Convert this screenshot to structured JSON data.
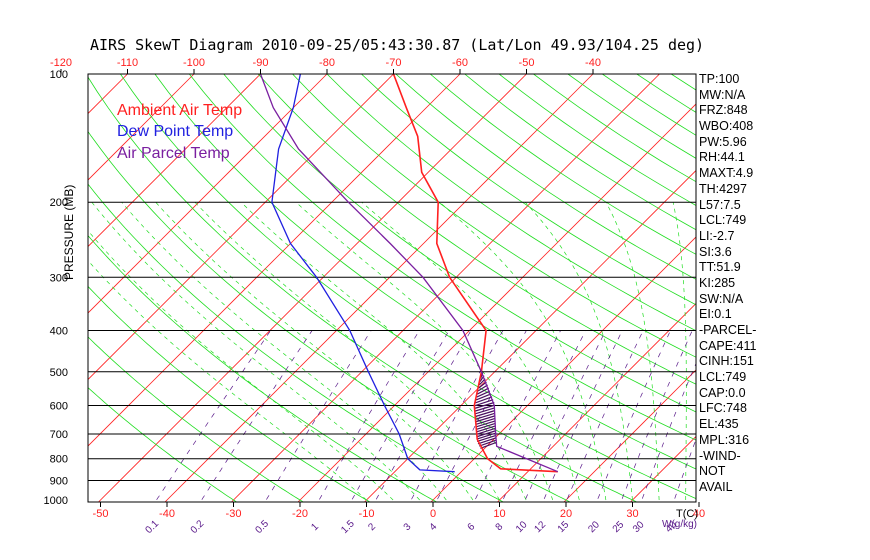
{
  "chart_data": {
    "type": "line",
    "title": "AIRS SkewT Diagram 2010-09-25/05:43:30.87 (Lat/Lon 49.93/104.25 deg)",
    "ylabel": "PRESSURE (MB)",
    "xlabel": "T(C)",
    "mixing_ratio_label": "W(g/kg)",
    "pressure_ticks": [
      "100",
      "200",
      "300",
      "400",
      "500",
      "600",
      "700",
      "800",
      "900",
      "1000"
    ],
    "pressure_levels": [
      200,
      300,
      400,
      500,
      600,
      700,
      800,
      900
    ],
    "top_temp_ticks": [
      "-120",
      "-110",
      "-100",
      "-90",
      "-80",
      "-70",
      "-60",
      "-50",
      "-40"
    ],
    "bottom_temp_ticks": [
      "-50",
      "-40",
      "-30",
      "-20",
      "-10",
      "0",
      "10",
      "20",
      "30",
      "40"
    ],
    "mixing_ratio_ticks": [
      "0.1",
      "0.2",
      "0.5",
      "1",
      "1.5",
      "2",
      "3",
      "4",
      "6",
      "8",
      "10",
      "12",
      "15",
      "20",
      "25",
      "30",
      "40"
    ],
    "ylim": [
      1000,
      100
    ],
    "series": [
      {
        "name": "Ambient Air Temp",
        "color": "#ff2020",
        "points": [
          [
            858,
            14.5
          ],
          [
            845,
            5.5
          ],
          [
            800,
            2.0
          ],
          [
            720,
            -2.5
          ],
          [
            600,
            -8.0
          ],
          [
            500,
            -12.0
          ],
          [
            400,
            -17.5
          ],
          [
            300,
            -31.0
          ],
          [
            250,
            -38.0
          ],
          [
            200,
            -44.0
          ],
          [
            170,
            -51.0
          ],
          [
            140,
            -57.0
          ],
          [
            120,
            -63.0
          ],
          [
            100,
            -70.0
          ]
        ]
      },
      {
        "name": "Dew Point Temp",
        "color": "#2020e0",
        "points": [
          [
            858,
            -1.0
          ],
          [
            850,
            -6.5
          ],
          [
            800,
            -10.0
          ],
          [
            700,
            -15.0
          ],
          [
            600,
            -21.5
          ],
          [
            500,
            -29.0
          ],
          [
            400,
            -38.0
          ],
          [
            300,
            -51.0
          ],
          [
            250,
            -60.0
          ],
          [
            200,
            -69.0
          ],
          [
            150,
            -76.0
          ],
          [
            120,
            -80.0
          ],
          [
            100,
            -84.0
          ]
        ]
      },
      {
        "name": "Air Parcel Temp",
        "color": "#7a1fa0",
        "points": [
          [
            858,
            14.5
          ],
          [
            748,
            1.5
          ],
          [
            700,
            -0.5
          ],
          [
            600,
            -5.0
          ],
          [
            500,
            -12.0
          ],
          [
            400,
            -21.0
          ],
          [
            300,
            -35.0
          ],
          [
            250,
            -45.0
          ],
          [
            200,
            -57.5
          ],
          [
            150,
            -73.0
          ],
          [
            120,
            -83.0
          ],
          [
            100,
            -90.0
          ]
        ]
      }
    ],
    "cape_shading": {
      "from_hpa": 748,
      "to_hpa": 500,
      "color": "#4a1060"
    }
  },
  "legend": {
    "ambient": "Ambient Air Temp",
    "dew": "Dew Point Temp",
    "parcel": "Air Parcel Temp"
  },
  "indices": [
    "TP:100",
    "MW:N/A",
    "FRZ:848",
    "WBO:408",
    "PW:5.96",
    "RH:44.1",
    "MAXT:4.9",
    "TH:4297",
    "L57:7.5",
    "LCL:749",
    "LI:-2.7",
    "SI:3.6",
    "TT:51.9",
    "KI:285",
    "SW:N/A",
    "EI:0.1",
    "-PARCEL-",
    "CAPE:411",
    "CINH:151",
    "LCL:749",
    "CAP:0.0",
    "LFC:748",
    "EL:435",
    "MPL:316",
    "-WIND-",
    "NOT",
    "AVAIL"
  ],
  "colors": {
    "isotherm": "#ff2020",
    "dry_adiabat": "#20dd20",
    "moist_adiabat": "#20dd20",
    "mixing_ratio": "#5a1a8a",
    "isobar": "#000000"
  }
}
